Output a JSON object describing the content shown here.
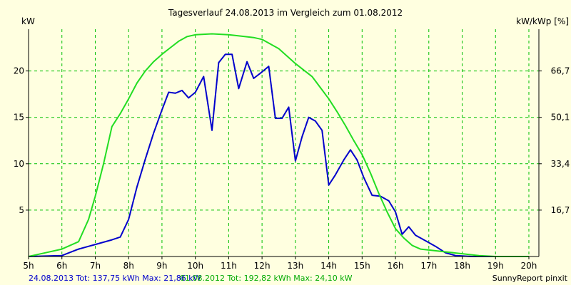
{
  "chart_data": {
    "type": "line",
    "title": "Tagesverlauf 24.08.2013 im Vergleich zum 01.08.2012",
    "ylabel_left": "kW",
    "ylabel_right": "kW/kWp [%]",
    "x_tick_labels": [
      "5h",
      "6h",
      "7h",
      "8h",
      "9h",
      "10h",
      "11h",
      "12h",
      "13h",
      "14h",
      "15h",
      "16h",
      "17h",
      "18h",
      "19h",
      "20h"
    ],
    "xlim": [
      5,
      20.3
    ],
    "ylim": [
      0,
      24.5
    ],
    "y_ticks": [
      5,
      10,
      15,
      20
    ],
    "y_tick_labels": [
      "5",
      "10",
      "15",
      "20"
    ],
    "y_right_ticks": [
      5,
      10,
      15,
      20
    ],
    "y_right_tick_labels": [
      "16,7",
      "33,4",
      "50,1",
      "66,7"
    ],
    "grid": true,
    "colors": {
      "background": "#ffffe0",
      "grid": "#00c000",
      "axis": "#000000"
    },
    "series": [
      {
        "name": "24.08.2013",
        "color": "#0000cc",
        "points": [
          [
            5.0,
            0.0
          ],
          [
            6.0,
            0.1
          ],
          [
            6.5,
            0.8
          ],
          [
            7.0,
            1.3
          ],
          [
            7.5,
            1.8
          ],
          [
            7.75,
            2.1
          ],
          [
            8.0,
            4.0
          ],
          [
            8.25,
            7.5
          ],
          [
            8.5,
            10.5
          ],
          [
            8.75,
            13.3
          ],
          [
            9.0,
            15.8
          ],
          [
            9.2,
            17.7
          ],
          [
            9.4,
            17.6
          ],
          [
            9.6,
            17.9
          ],
          [
            9.8,
            17.1
          ],
          [
            10.0,
            17.7
          ],
          [
            10.25,
            19.4
          ],
          [
            10.5,
            13.6
          ],
          [
            10.7,
            20.9
          ],
          [
            10.9,
            21.8
          ],
          [
            11.1,
            21.8
          ],
          [
            11.3,
            18.1
          ],
          [
            11.55,
            21.0
          ],
          [
            11.75,
            19.2
          ],
          [
            12.0,
            19.9
          ],
          [
            12.2,
            20.5
          ],
          [
            12.4,
            14.9
          ],
          [
            12.6,
            14.9
          ],
          [
            12.8,
            16.1
          ],
          [
            13.0,
            10.3
          ],
          [
            13.2,
            12.9
          ],
          [
            13.4,
            15.0
          ],
          [
            13.6,
            14.6
          ],
          [
            13.8,
            13.6
          ],
          [
            14.0,
            7.7
          ],
          [
            14.2,
            8.8
          ],
          [
            14.45,
            10.4
          ],
          [
            14.65,
            11.5
          ],
          [
            14.85,
            10.4
          ],
          [
            15.05,
            8.5
          ],
          [
            15.3,
            6.6
          ],
          [
            15.55,
            6.5
          ],
          [
            15.8,
            6.0
          ],
          [
            16.0,
            4.8
          ],
          [
            16.2,
            2.4
          ],
          [
            16.4,
            3.2
          ],
          [
            16.6,
            2.3
          ],
          [
            16.9,
            1.7
          ],
          [
            17.2,
            1.1
          ],
          [
            17.5,
            0.4
          ],
          [
            17.8,
            0.1
          ],
          [
            18.3,
            0.0
          ],
          [
            19.0,
            0.0
          ]
        ]
      },
      {
        "name": "01.08.2012",
        "color": "#22dd22",
        "points": [
          [
            5.0,
            0.0
          ],
          [
            5.5,
            0.4
          ],
          [
            6.0,
            0.8
          ],
          [
            6.5,
            1.6
          ],
          [
            6.8,
            4.0
          ],
          [
            7.0,
            6.5
          ],
          [
            7.25,
            10.0
          ],
          [
            7.5,
            14.0
          ],
          [
            7.75,
            15.4
          ],
          [
            8.0,
            17.0
          ],
          [
            8.25,
            18.7
          ],
          [
            8.5,
            20.0
          ],
          [
            8.75,
            21.0
          ],
          [
            9.0,
            21.8
          ],
          [
            9.25,
            22.5
          ],
          [
            9.5,
            23.2
          ],
          [
            9.75,
            23.7
          ],
          [
            10.0,
            23.9
          ],
          [
            10.5,
            24.0
          ],
          [
            11.0,
            23.9
          ],
          [
            11.5,
            23.7
          ],
          [
            11.75,
            23.6
          ],
          [
            12.0,
            23.4
          ],
          [
            12.25,
            22.9
          ],
          [
            12.5,
            22.4
          ],
          [
            12.75,
            21.6
          ],
          [
            13.0,
            20.8
          ],
          [
            13.25,
            20.1
          ],
          [
            13.5,
            19.4
          ],
          [
            13.75,
            18.2
          ],
          [
            14.0,
            17.0
          ],
          [
            14.25,
            15.6
          ],
          [
            14.5,
            14.1
          ],
          [
            14.75,
            12.5
          ],
          [
            15.0,
            11.0
          ],
          [
            15.25,
            9.0
          ],
          [
            15.5,
            6.8
          ],
          [
            15.75,
            4.8
          ],
          [
            16.0,
            3.0
          ],
          [
            16.25,
            2.0
          ],
          [
            16.5,
            1.2
          ],
          [
            16.75,
            0.8
          ],
          [
            17.0,
            0.7
          ],
          [
            17.5,
            0.5
          ],
          [
            18.0,
            0.3
          ],
          [
            18.5,
            0.1
          ],
          [
            19.0,
            0.0
          ],
          [
            20.0,
            0.0
          ]
        ]
      }
    ],
    "footer_text_1": "24.08.2013 Tot: 137,75 kWh Max: 21,86 kW",
    "footer_text_2": "01.08.2012 Tot: 192,82 kWh Max: 24,10 kW",
    "footer_right": "SunnyReport pinxit"
  }
}
